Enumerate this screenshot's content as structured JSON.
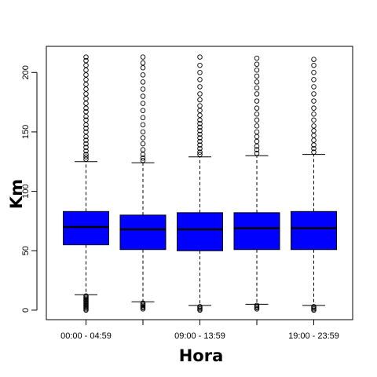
{
  "chart_data": {
    "type": "boxplot",
    "title": "",
    "xlabel": "Hora",
    "ylabel": "Km",
    "ylim": [
      -8,
      222
    ],
    "y_ticks": [
      0,
      50,
      100,
      150,
      200
    ],
    "box_color": "#0000ff",
    "categories": [
      "00:00 - 04:59",
      "",
      "09:00 - 13:59",
      "",
      "19:00 - 23:59"
    ],
    "category_labels_shown": [
      "00:00 - 04:59",
      "09:00 - 13:59",
      "19:00 - 23:59"
    ],
    "boxes": [
      {
        "whisker_low": 13,
        "q1": 55,
        "median": 70,
        "q3": 83,
        "whisker_high": 125,
        "outliers_low": [
          0,
          1,
          2,
          3,
          4,
          5,
          6,
          7,
          8,
          9,
          10,
          11,
          12
        ],
        "outliers_high": [
          127,
          129,
          131,
          134,
          137,
          140,
          143,
          146,
          150,
          153,
          156,
          160,
          163,
          167,
          170,
          174,
          178,
          182,
          186,
          190,
          194,
          198,
          202,
          206,
          210,
          213
        ]
      },
      {
        "whisker_low": 7,
        "q1": 51,
        "median": 68,
        "q3": 80,
        "whisker_high": 124,
        "outliers_low": [
          1,
          2,
          3,
          4,
          5,
          6
        ],
        "outliers_high": [
          126,
          128,
          131,
          135,
          140,
          145,
          150,
          156,
          162,
          168,
          174,
          180,
          186,
          192,
          198,
          204,
          208,
          213
        ]
      },
      {
        "whisker_low": 4,
        "q1": 50,
        "median": 68,
        "q3": 82,
        "whisker_high": 129,
        "outliers_low": [
          0,
          1,
          2,
          3
        ],
        "outliers_high": [
          131,
          133,
          136,
          139,
          142,
          145,
          148,
          151,
          154,
          157,
          160,
          164,
          168,
          172,
          177,
          182,
          188,
          194,
          200,
          206,
          213
        ]
      },
      {
        "whisker_low": 5,
        "q1": 51,
        "median": 69,
        "q3": 82,
        "whisker_high": 130,
        "outliers_low": [
          1,
          2,
          3,
          4
        ],
        "outliers_high": [
          132,
          135,
          138,
          142,
          146,
          150,
          155,
          160,
          165,
          170,
          176,
          182,
          187,
          192,
          197,
          202,
          207,
          212
        ]
      },
      {
        "whisker_low": 4,
        "q1": 51,
        "median": 69,
        "q3": 83,
        "whisker_high": 131,
        "outliers_low": [
          0,
          1,
          2,
          3
        ],
        "outliers_high": [
          133,
          136,
          139,
          143,
          147,
          151,
          155,
          160,
          165,
          170,
          176,
          182,
          188,
          194,
          200,
          206,
          211
        ]
      }
    ]
  }
}
